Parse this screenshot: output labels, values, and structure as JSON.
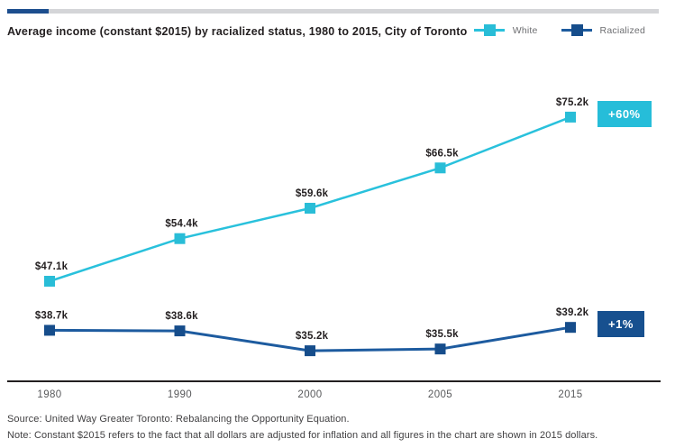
{
  "top_bar": {
    "accent_color": "#1C4E8E",
    "track_color": "#D4D5D8"
  },
  "header": {
    "title": "Average income (constant $2015) by racialized status, 1980 to 2015, City of Toronto"
  },
  "chart_data": {
    "type": "line",
    "title": "Average income (constant $2015) by racialized status, 1980 to 2015, City of Toronto",
    "categories": [
      "1980",
      "1990",
      "2000",
      "2005",
      "2015"
    ],
    "series": [
      {
        "name": "White",
        "values": [
          47.1,
          54.4,
          59.6,
          66.5,
          75.2
        ],
        "value_labels": [
          "$47.1k",
          "$54.4k",
          "$59.6k",
          "$66.5k",
          "$75.2k"
        ],
        "line_color": "#29C1DC",
        "marker_color": "#29BDD7",
        "annotation": {
          "label": "+60%",
          "bg": "#26BDD9"
        }
      },
      {
        "name": "Racialized",
        "values": [
          38.7,
          38.6,
          35.2,
          35.5,
          39.2
        ],
        "value_labels": [
          "$38.7k",
          "$38.6k",
          "$35.2k",
          "$35.5k",
          "$39.2k"
        ],
        "line_color": "#1D5B9F",
        "marker_color": "#164D8B",
        "annotation": {
          "label": "+1%",
          "bg": "#17508F"
        }
      }
    ],
    "unit": "thousands of constant 2015 dollars",
    "xlabel": "",
    "ylabel": "",
    "ylim": [
      30,
      80
    ],
    "grid": false,
    "legend_position": "top-right",
    "axis_color": "#231F20",
    "tick_label_color": "#58595B",
    "point_label_color": "#231F20"
  },
  "footer": {
    "source": "Source: United Way Greater Toronto: Rebalancing the Opportunity Equation.",
    "note": "Note: Constant $2015 refers to the fact that all dollars are adjusted for inflation and all figures in the chart are shown in 2015 dollars."
  }
}
